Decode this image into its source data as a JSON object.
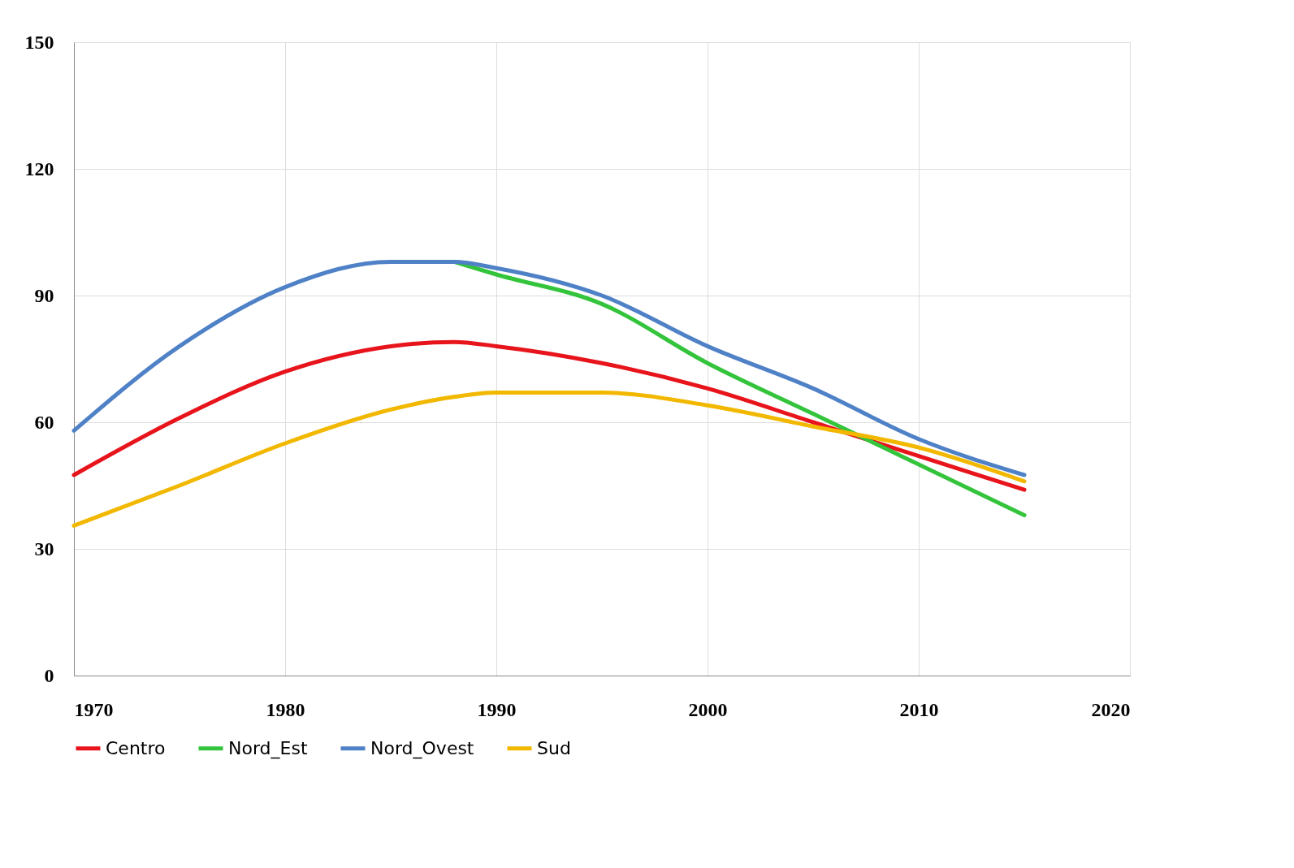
{
  "chart_data": {
    "type": "line",
    "x": [
      1970,
      1975,
      1980,
      1985,
      1988,
      1990,
      1995,
      2000,
      2005,
      2010,
      2015
    ],
    "series": [
      {
        "name": "Centro",
        "color": "#e8141c",
        "values": [
          47.5,
          61,
          72,
          78,
          79,
          78,
          74,
          68,
          60,
          52,
          44
        ]
      },
      {
        "name": "Nord_Est",
        "color": "#33c43c",
        "values": [
          null,
          null,
          null,
          null,
          98,
          95,
          88,
          74,
          62,
          50,
          38
        ]
      },
      {
        "name": "Nord_Ovest",
        "color": "#4f81c7",
        "values": [
          58,
          78,
          92,
          98,
          98,
          96.5,
          90,
          78,
          68,
          56,
          47.5
        ]
      },
      {
        "name": "Sud",
        "color": "#f2b800",
        "values": [
          35.5,
          45,
          55,
          63,
          66,
          67,
          67,
          64,
          59,
          54,
          46
        ]
      }
    ],
    "xlim": [
      1970,
      2020
    ],
    "xticks": [
      1970,
      1980,
      1990,
      2000,
      2010,
      2020
    ],
    "ylim": [
      0,
      150
    ],
    "yticks": [
      0,
      30,
      60,
      90,
      120,
      150
    ],
    "grid": true,
    "legend": "bottom",
    "marker": "none",
    "line_style": "solid"
  }
}
